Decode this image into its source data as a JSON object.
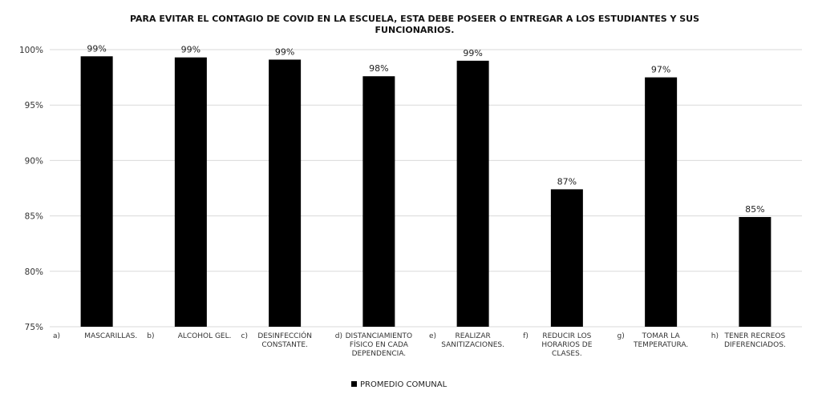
{
  "chart_data": {
    "type": "bar",
    "title": "PARA EVITAR EL CONTAGIO DE COVID EN LA ESCUELA, ESTA DEBE POSEER O ENTREGAR A LOS ESTUDIANTES Y SUS FUNCIONARIOS.",
    "title_lines": [
      "PARA EVITAR EL CONTAGIO DE COVID EN LA ESCUELA, ESTA DEBE POSEER O ENTREGAR A LOS ESTUDIANTES Y SUS",
      "FUNCIONARIOS."
    ],
    "xlabel": "",
    "ylabel": "",
    "ylim": [
      75,
      100
    ],
    "yticks": [
      75,
      80,
      85,
      90,
      95,
      100
    ],
    "ytick_labels": [
      "75%",
      "80%",
      "85%",
      "90%",
      "95%",
      "100%"
    ],
    "grid": true,
    "legend_position": "bottom",
    "bar_color": "#000000",
    "categories": [
      [
        "a)",
        "MASCARILLAS."
      ],
      [
        "b)",
        "ALCOHOL GEL."
      ],
      [
        "c)",
        "DESINFECCIÓN",
        "CONSTANTE."
      ],
      [
        "d)",
        "DISTANCIAMIENTO",
        "FÍSICO EN CADA",
        "DEPENDENCIA."
      ],
      [
        "e)",
        "REALIZAR",
        "SANITIZACIONES."
      ],
      [
        "f)",
        "REDUCIR LOS",
        "HORARIOS DE",
        "CLASES."
      ],
      [
        "g)",
        "TOMAR LA",
        "TEMPERATURA."
      ],
      [
        "h)",
        "TENER RECREOS",
        "DIFERENCIADOS."
      ]
    ],
    "series": [
      {
        "name": "PROMEDIO COMUNAL",
        "values": [
          99.4,
          99.3,
          99.1,
          97.6,
          99.0,
          87.4,
          97.5,
          84.9
        ],
        "labels": [
          "99%",
          "99%",
          "99%",
          "98%",
          "99%",
          "87%",
          "97%",
          "85%"
        ]
      }
    ]
  }
}
